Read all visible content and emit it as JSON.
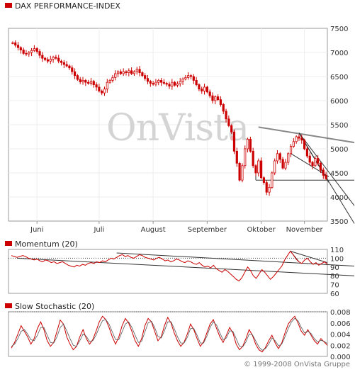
{
  "copyright": "© 1999-2008 OnVista Gruppe",
  "watermark": {
    "text": "OnVista",
    "dot": "."
  },
  "colors": {
    "series": "#cc0000",
    "trend": "#333333",
    "grey_trend": "#888888",
    "grid": "#eeeeee"
  },
  "chart_data": [
    {
      "type": "candlestick",
      "title": "DAX PERFORMANCE-INDEX",
      "ylim": [
        3500,
        7500
      ],
      "yticks": [
        3500,
        4000,
        4500,
        5000,
        5500,
        6000,
        6500,
        7000,
        7500
      ],
      "ytick_labels": [
        "3500",
        "4000",
        "4500",
        "5000",
        "5500",
        "6000",
        "6500",
        "7000",
        "7500"
      ],
      "months": [
        "Juni",
        "Juli",
        "August",
        "September",
        "Oktober",
        "November"
      ],
      "grid": true,
      "values": [
        7200,
        7150,
        7100,
        7050,
        6980,
        6970,
        7000,
        7040,
        7080,
        7020,
        6940,
        6880,
        6850,
        6820,
        6860,
        6900,
        6880,
        6820,
        6790,
        6750,
        6720,
        6680,
        6600,
        6520,
        6440,
        6390,
        6420,
        6380,
        6360,
        6400,
        6330,
        6280,
        6200,
        6160,
        6240,
        6380,
        6420,
        6480,
        6560,
        6600,
        6560,
        6600,
        6580,
        6620,
        6560,
        6600,
        6650,
        6580,
        6520,
        6460,
        6400,
        6360,
        6340,
        6380,
        6420,
        6380,
        6360,
        6340,
        6300,
        6380,
        6320,
        6350,
        6400,
        6450,
        6480,
        6520,
        6500,
        6420,
        6330,
        6240,
        6200,
        6280,
        6180,
        6100,
        6000,
        6080,
        6020,
        5920,
        5780,
        5620,
        5480,
        5350,
        4950,
        4700,
        4350,
        4650,
        5000,
        5200,
        4950,
        4650,
        4500,
        4750,
        4400,
        4300,
        4100,
        4200,
        4500,
        4750,
        4900,
        4780,
        4600,
        4720,
        4900,
        5050,
        5150,
        5250,
        5220,
        5180,
        5000,
        4850,
        4720,
        4650,
        4800,
        4700,
        4560,
        4450,
        4380
      ]
    },
    {
      "type": "line",
      "title": "Momentum (20)",
      "ylim": [
        60,
        110
      ],
      "yticks": [
        60,
        70,
        80,
        90,
        100,
        110
      ],
      "ytick_labels": [
        "60",
        "70",
        "80",
        "90",
        "100",
        "110"
      ],
      "reference_line": 100,
      "values": [
        103,
        102,
        101,
        102,
        103,
        102,
        100,
        99,
        98,
        99,
        97,
        96,
        98,
        97,
        95,
        96,
        94,
        95,
        96,
        94,
        92,
        91,
        90,
        92,
        91,
        93,
        92,
        94,
        95,
        94,
        96,
        95,
        97,
        96,
        98,
        100,
        99,
        101,
        103,
        104,
        102,
        103,
        101,
        100,
        102,
        104,
        103,
        101,
        100,
        99,
        98,
        100,
        101,
        99,
        97,
        98,
        96,
        97,
        99,
        98,
        96,
        95,
        97,
        96,
        94,
        93,
        95,
        92,
        90,
        91,
        89,
        92,
        88,
        86,
        84,
        87,
        85,
        82,
        79,
        76,
        74,
        78,
        84,
        90,
        86,
        80,
        77,
        82,
        87,
        84,
        80,
        76,
        79,
        83,
        87,
        91,
        98,
        103,
        108,
        104,
        99,
        96,
        94,
        98,
        100,
        96,
        93,
        95,
        92,
        94,
        96,
        93
      ]
    },
    {
      "type": "line",
      "title": "Slow Stochastic (20)",
      "ylim": [
        0,
        0.008
      ],
      "yticks": [
        0,
        0.002,
        0.004,
        0.006,
        0.008
      ],
      "ytick_labels": [
        "0.000",
        "0.002",
        "0.004",
        "0.006",
        "0.008"
      ],
      "reference_line": 0.008,
      "series": [
        {
          "values": [
            0.0015,
            0.0025,
            0.004,
            0.0055,
            0.0045,
            0.0035,
            0.0022,
            0.0032,
            0.005,
            0.0062,
            0.0048,
            0.0028,
            0.0018,
            0.0025,
            0.0045,
            0.0065,
            0.0058,
            0.0035,
            0.0022,
            0.0012,
            0.0018,
            0.0035,
            0.0048,
            0.0032,
            0.0022,
            0.003,
            0.0045,
            0.0062,
            0.0072,
            0.0066,
            0.0052,
            0.0035,
            0.0022,
            0.0035,
            0.0055,
            0.0068,
            0.006,
            0.0045,
            0.0028,
            0.0018,
            0.0032,
            0.0055,
            0.0068,
            0.0062,
            0.0045,
            0.0028,
            0.0035,
            0.0055,
            0.007,
            0.006,
            0.0042,
            0.0028,
            0.0018,
            0.0025,
            0.004,
            0.0058,
            0.0048,
            0.0032,
            0.0018,
            0.0026,
            0.0042,
            0.0058,
            0.0066,
            0.005,
            0.0035,
            0.0025,
            0.0038,
            0.0052,
            0.0042,
            0.0022,
            0.0012,
            0.0018,
            0.0032,
            0.0048,
            0.0038,
            0.0022,
            0.0012,
            0.0008,
            0.0016,
            0.0028,
            0.0038,
            0.0024,
            0.0014,
            0.0024,
            0.0042,
            0.0058,
            0.0066,
            0.0072,
            0.006,
            0.0045,
            0.0038,
            0.0048,
            0.0038,
            0.0028,
            0.0022,
            0.0032,
            0.0026,
            0.002
          ]
        },
        {
          "values": [
            0.0018,
            0.0022,
            0.0032,
            0.0045,
            0.0048,
            0.004,
            0.003,
            0.0028,
            0.0038,
            0.0052,
            0.0052,
            0.0038,
            0.0025,
            0.0024,
            0.0035,
            0.0052,
            0.0058,
            0.0046,
            0.0032,
            0.002,
            0.0018,
            0.0028,
            0.004,
            0.0036,
            0.0027,
            0.0028,
            0.0038,
            0.0052,
            0.0064,
            0.0066,
            0.0058,
            0.0044,
            0.003,
            0.003,
            0.0044,
            0.0058,
            0.0062,
            0.0052,
            0.0038,
            0.0025,
            0.0027,
            0.0044,
            0.006,
            0.0063,
            0.0052,
            0.0036,
            0.0033,
            0.0046,
            0.0062,
            0.0062,
            0.005,
            0.0035,
            0.0024,
            0.0024,
            0.0034,
            0.005,
            0.005,
            0.0038,
            0.0024,
            0.0024,
            0.0036,
            0.0052,
            0.0062,
            0.0056,
            0.0042,
            0.003,
            0.0033,
            0.0046,
            0.0045,
            0.0032,
            0.0018,
            0.0017,
            0.0026,
            0.004,
            0.0039,
            0.0028,
            0.0017,
            0.0011,
            0.0014,
            0.0022,
            0.0033,
            0.0028,
            0.0019,
            0.0022,
            0.0035,
            0.005,
            0.0062,
            0.0068,
            0.0064,
            0.0052,
            0.0042,
            0.0045,
            0.0041,
            0.0032,
            0.0026,
            0.0029,
            0.0027,
            0.0023
          ]
        }
      ]
    }
  ]
}
